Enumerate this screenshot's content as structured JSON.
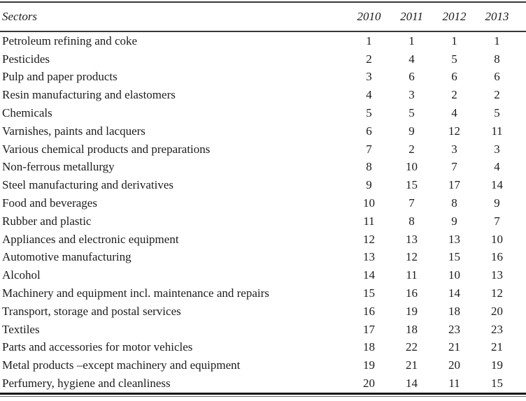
{
  "table": {
    "header": {
      "sector": "Sectors",
      "years": [
        "2010",
        "2011",
        "2012",
        "2013"
      ]
    },
    "rows": [
      {
        "sector": "Petroleum refining and coke",
        "ranks": [
          1,
          1,
          1,
          1
        ]
      },
      {
        "sector": "Pesticides",
        "ranks": [
          2,
          4,
          5,
          8
        ]
      },
      {
        "sector": "Pulp and paper products",
        "ranks": [
          3,
          6,
          6,
          6
        ]
      },
      {
        "sector": "Resin manufacturing and elastomers",
        "ranks": [
          4,
          3,
          2,
          2
        ]
      },
      {
        "sector": "Chemicals",
        "ranks": [
          5,
          5,
          4,
          5
        ]
      },
      {
        "sector": "Varnishes, paints and lacquers",
        "ranks": [
          6,
          9,
          12,
          11
        ]
      },
      {
        "sector": "Various chemical products and preparations",
        "ranks": [
          7,
          2,
          3,
          3
        ]
      },
      {
        "sector": "Non-ferrous metallurgy",
        "ranks": [
          8,
          10,
          7,
          4
        ]
      },
      {
        "sector": "Steel manufacturing and derivatives",
        "ranks": [
          9,
          15,
          17,
          14
        ]
      },
      {
        "sector": "Food and beverages",
        "ranks": [
          10,
          7,
          8,
          9
        ]
      },
      {
        "sector": "Rubber and plastic",
        "ranks": [
          11,
          8,
          9,
          7
        ]
      },
      {
        "sector": "Appliances and electronic equipment",
        "ranks": [
          12,
          13,
          13,
          10
        ]
      },
      {
        "sector": "Automotive manufacturing",
        "ranks": [
          13,
          12,
          15,
          16
        ]
      },
      {
        "sector": "Alcohol",
        "ranks": [
          14,
          11,
          10,
          13
        ]
      },
      {
        "sector": "Machinery and equipment incl. maintenance and repairs",
        "ranks": [
          15,
          16,
          14,
          12
        ]
      },
      {
        "sector": "Transport, storage and postal services",
        "ranks": [
          16,
          19,
          18,
          20
        ]
      },
      {
        "sector": "Textiles",
        "ranks": [
          17,
          18,
          23,
          23
        ]
      },
      {
        "sector": "Parts and accessories for motor vehicles",
        "ranks": [
          18,
          22,
          21,
          21
        ]
      },
      {
        "sector": "Metal products –except machinery and equipment",
        "ranks": [
          19,
          21,
          20,
          19
        ]
      },
      {
        "sector": "Perfumery, hygiene and cleanliness",
        "ranks": [
          20,
          14,
          11,
          15
        ]
      }
    ]
  }
}
